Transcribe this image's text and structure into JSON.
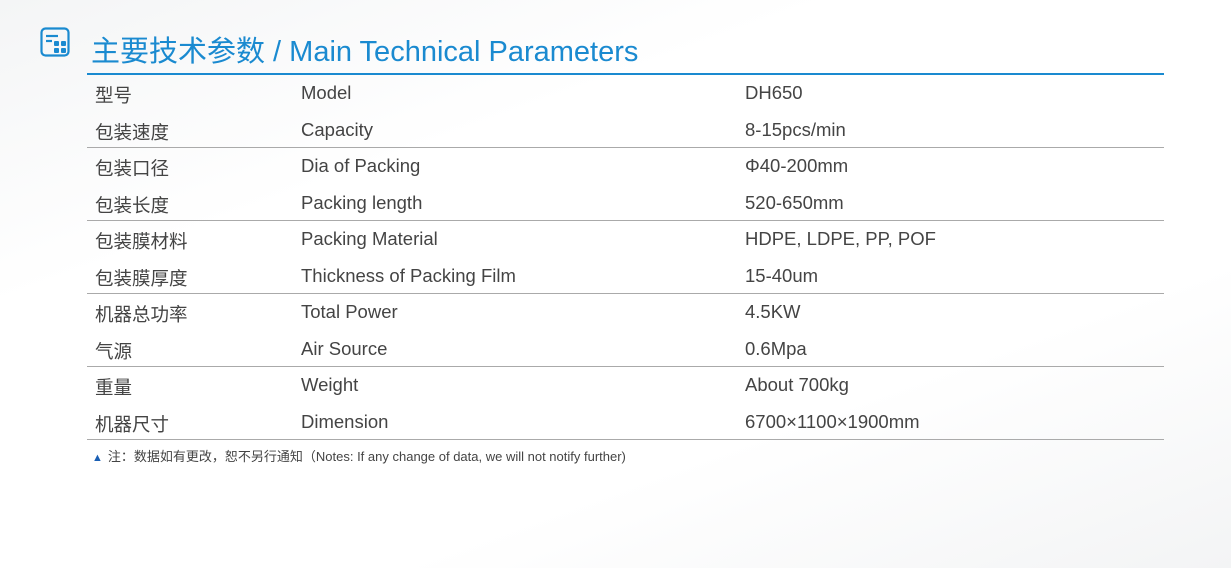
{
  "title": "主要技术参数 / Main Technical Parameters",
  "accent": "#1a8ad0",
  "rows": [
    {
      "cn": "型号",
      "en": "Model",
      "value": "DH650"
    },
    {
      "cn": "包装速度",
      "en": "Capacity",
      "value": "8-15pcs/min"
    },
    {
      "cn": "包装口径",
      "en": "Dia of Packing",
      "value": "Φ40-200mm"
    },
    {
      "cn": "包装长度",
      "en": "Packing length",
      "value": "520-650mm"
    },
    {
      "cn": "包装膜材料",
      "en": "Packing Material",
      "value": "HDPE, LDPE, PP, POF"
    },
    {
      "cn": "包装膜厚度",
      "en": "Thickness of Packing Film",
      "value": "15-40um"
    },
    {
      "cn": "机器总功率",
      "en": " Total Power",
      "value": "4.5KW"
    },
    {
      "cn": "气源",
      "en": "Air Source",
      "value": "0.6Mpa"
    },
    {
      "cn": "重量",
      "en": "Weight",
      "value": "About 700kg"
    },
    {
      "cn": "机器尺寸",
      "en": "Dimension",
      "value": "6700×1100×1900mm"
    }
  ],
  "note": {
    "marker": "▲",
    "text": "注：数据如有更改，恕不另行通知（Notes: If any change of data, we will not notify further)"
  }
}
